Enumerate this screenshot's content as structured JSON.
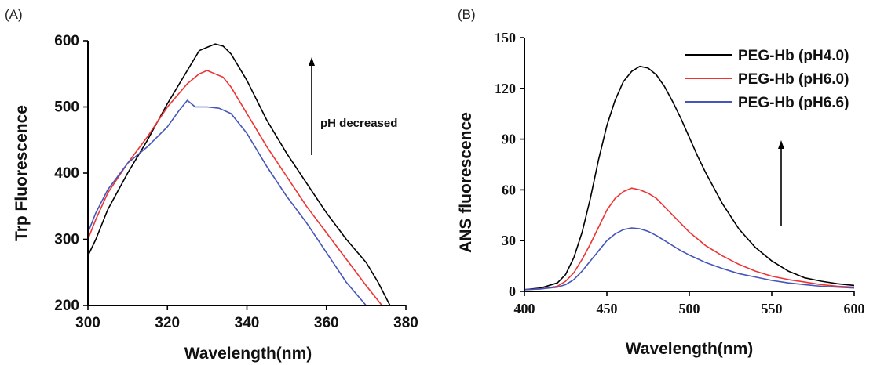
{
  "chart_data": [
    {
      "type": "line",
      "panel_label": "(A)",
      "xlabel": "Wavelength(nm)",
      "ylabel": "Trp Fluorescence",
      "xlim": [
        300,
        380
      ],
      "ylim": [
        200,
        600
      ],
      "xticks": [
        300,
        320,
        340,
        360,
        380
      ],
      "yticks": [
        200,
        300,
        400,
        500,
        600
      ],
      "annotation": "pH decreased",
      "series": [
        {
          "color": "#000000",
          "x": [
            300,
            302,
            305,
            310,
            315,
            320,
            325,
            328,
            330,
            332,
            334,
            336,
            340,
            345,
            350,
            355,
            360,
            365,
            370,
            373,
            376
          ],
          "y": [
            275,
            300,
            345,
            400,
            450,
            505,
            555,
            585,
            590,
            595,
            592,
            580,
            540,
            480,
            430,
            385,
            340,
            300,
            265,
            235,
            200
          ]
        },
        {
          "color": "#ee3333",
          "x": [
            300,
            302,
            305,
            310,
            315,
            320,
            325,
            328,
            330,
            332,
            334,
            336,
            340,
            345,
            350,
            355,
            360,
            365,
            370,
            374
          ],
          "y": [
            300,
            330,
            370,
            415,
            455,
            500,
            535,
            550,
            555,
            550,
            545,
            530,
            490,
            440,
            395,
            350,
            310,
            270,
            230,
            200
          ]
        },
        {
          "color": "#4455bb",
          "x": [
            300,
            302,
            305,
            310,
            315,
            320,
            323,
            325,
            327,
            330,
            333,
            336,
            340,
            345,
            350,
            355,
            360,
            365,
            370
          ],
          "y": [
            310,
            340,
            375,
            415,
            440,
            470,
            495,
            510,
            500,
            500,
            498,
            490,
            460,
            410,
            365,
            325,
            280,
            235,
            200
          ]
        }
      ]
    },
    {
      "type": "line",
      "panel_label": "(B)",
      "xlabel": "Wavelength(nm)",
      "ylabel": "ANS fluorescence",
      "xlim": [
        400,
        600
      ],
      "ylim": [
        0,
        150
      ],
      "xticks": [
        400,
        450,
        500,
        550,
        600
      ],
      "yticks": [
        0,
        30,
        60,
        90,
        120,
        150
      ],
      "legend_position": "top-right",
      "series": [
        {
          "name": "PEG-Hb (pH4.0)",
          "color": "#000000",
          "x": [
            400,
            410,
            420,
            425,
            430,
            435,
            440,
            445,
            450,
            455,
            460,
            465,
            470,
            475,
            480,
            485,
            490,
            495,
            500,
            505,
            510,
            520,
            530,
            540,
            550,
            560,
            570,
            580,
            590,
            600
          ],
          "y": [
            1,
            2,
            5,
            10,
            20,
            35,
            55,
            78,
            98,
            113,
            124,
            130,
            133,
            132,
            128,
            121,
            112,
            102,
            91,
            80,
            70,
            52,
            37,
            26,
            18,
            12,
            8,
            6,
            4.5,
            3.5
          ]
        },
        {
          "name": "PEG-Hb (pH6.0)",
          "color": "#ee3333",
          "x": [
            400,
            410,
            420,
            425,
            430,
            435,
            440,
            445,
            450,
            455,
            460,
            465,
            470,
            475,
            480,
            485,
            490,
            495,
            500,
            510,
            520,
            530,
            540,
            550,
            560,
            570,
            580,
            590,
            600
          ],
          "y": [
            1,
            1.5,
            3,
            6,
            11,
            19,
            28,
            38,
            48,
            55,
            59,
            61,
            60,
            58,
            55,
            50,
            45,
            40,
            35,
            27,
            21,
            16,
            12,
            9,
            7,
            5.5,
            4,
            3,
            2.5
          ]
        },
        {
          "name": "PEG-Hb (pH6.6)",
          "color": "#4455bb",
          "x": [
            400,
            410,
            420,
            425,
            430,
            435,
            440,
            445,
            450,
            455,
            460,
            465,
            470,
            475,
            480,
            485,
            490,
            495,
            500,
            510,
            520,
            530,
            540,
            550,
            560,
            570,
            580,
            590,
            600
          ],
          "y": [
            1,
            1.5,
            2.5,
            4,
            7,
            12,
            18,
            24,
            30,
            34,
            36.5,
            37.5,
            37,
            35.5,
            33,
            30,
            27,
            24,
            21.5,
            17,
            13.5,
            10.5,
            8.5,
            6.5,
            5,
            4,
            3,
            2.5,
            2
          ]
        }
      ]
    }
  ]
}
